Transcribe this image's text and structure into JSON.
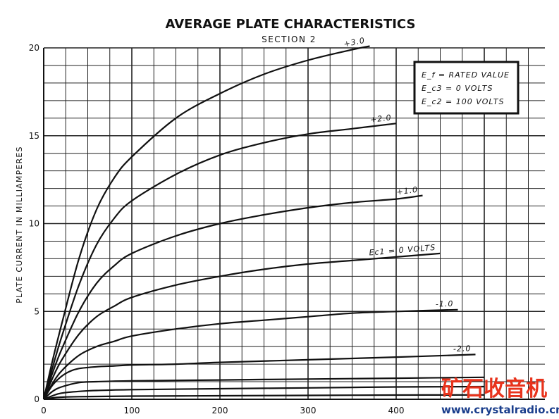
{
  "chart_data": {
    "type": "line",
    "title": "AVERAGE PLATE CHARACTERISTICS",
    "subtitle": "SECTION 2",
    "xlabel": "",
    "ylabel": "PLATE CURRENT IN MILLIAMPERES",
    "xlim": [
      0,
      450
    ],
    "ylim": [
      0,
      20
    ],
    "x_ticks": [
      0,
      100,
      200,
      300,
      400
    ],
    "y_ticks": [
      0,
      5,
      10,
      15,
      20
    ],
    "grid": true,
    "legend_box": {
      "lines": [
        "E_f = RATED VALUE",
        "E_c3 = 0 VOLTS",
        "E_c2 = 100 VOLTS"
      ],
      "placement": "top-right"
    },
    "series": [
      {
        "name": "+3.0",
        "x": [
          0,
          10,
          20,
          40,
          60,
          80,
          100,
          150,
          200,
          250,
          300,
          350,
          370
        ],
        "y": [
          0,
          2.2,
          4.2,
          8.0,
          10.8,
          12.6,
          13.8,
          16.0,
          17.4,
          18.5,
          19.3,
          19.9,
          20.1
        ]
      },
      {
        "name": "+2.0",
        "x": [
          0,
          10,
          20,
          40,
          60,
          80,
          100,
          150,
          200,
          250,
          300,
          350,
          400
        ],
        "y": [
          0,
          1.8,
          3.5,
          6.5,
          8.8,
          10.3,
          11.3,
          12.8,
          13.9,
          14.6,
          15.1,
          15.4,
          15.7
        ]
      },
      {
        "name": "+1.0",
        "x": [
          0,
          10,
          20,
          40,
          60,
          80,
          100,
          150,
          200,
          250,
          300,
          350,
          400,
          430
        ],
        "y": [
          0,
          1.5,
          2.8,
          5.0,
          6.6,
          7.6,
          8.3,
          9.3,
          10.0,
          10.5,
          10.9,
          11.2,
          11.4,
          11.6
        ]
      },
      {
        "name": "Ec1 = 0 VOLTS",
        "x": [
          0,
          10,
          20,
          40,
          60,
          80,
          100,
          150,
          200,
          250,
          300,
          350,
          400,
          450
        ],
        "y": [
          0,
          1.2,
          2.2,
          3.7,
          4.7,
          5.3,
          5.8,
          6.5,
          7.0,
          7.4,
          7.7,
          7.9,
          8.1,
          8.3
        ]
      },
      {
        "name": "-1.0",
        "x": [
          0,
          10,
          20,
          40,
          60,
          80,
          100,
          150,
          200,
          250,
          300,
          350,
          400,
          470
        ],
        "y": [
          0,
          0.9,
          1.6,
          2.5,
          3.0,
          3.3,
          3.6,
          4.0,
          4.3,
          4.5,
          4.7,
          4.9,
          5.0,
          5.1
        ]
      },
      {
        "name": "-2.0",
        "x": [
          0,
          10,
          20,
          30,
          40,
          60,
          80,
          100,
          150,
          200,
          300,
          400,
          490
        ],
        "y": [
          0,
          0.8,
          1.3,
          1.6,
          1.75,
          1.85,
          1.9,
          1.95,
          2.0,
          2.1,
          2.25,
          2.4,
          2.55
        ]
      },
      {
        "name": "",
        "x": [
          0,
          10,
          20,
          40,
          60,
          100,
          200,
          300,
          400,
          500
        ],
        "y": [
          0,
          0.45,
          0.7,
          0.95,
          1.0,
          1.05,
          1.1,
          1.15,
          1.2,
          1.25
        ]
      },
      {
        "name": "",
        "x": [
          0,
          10,
          20,
          40,
          60,
          100,
          200,
          300,
          400,
          500
        ],
        "y": [
          0,
          0.2,
          0.35,
          0.45,
          0.5,
          0.55,
          0.6,
          0.65,
          0.7,
          0.72
        ]
      },
      {
        "name": "",
        "x": [
          0,
          10,
          20,
          40,
          100,
          200,
          300,
          400,
          500
        ],
        "y": [
          0,
          0.08,
          0.12,
          0.15,
          0.18,
          0.2,
          0.22,
          0.24,
          0.25
        ]
      }
    ]
  },
  "watermark": {
    "text_cn": "矿石收音机",
    "url": "www.crystalradio.cn",
    "colors": {
      "cn": "#e8331c",
      "url": "#1a3e8c"
    }
  }
}
